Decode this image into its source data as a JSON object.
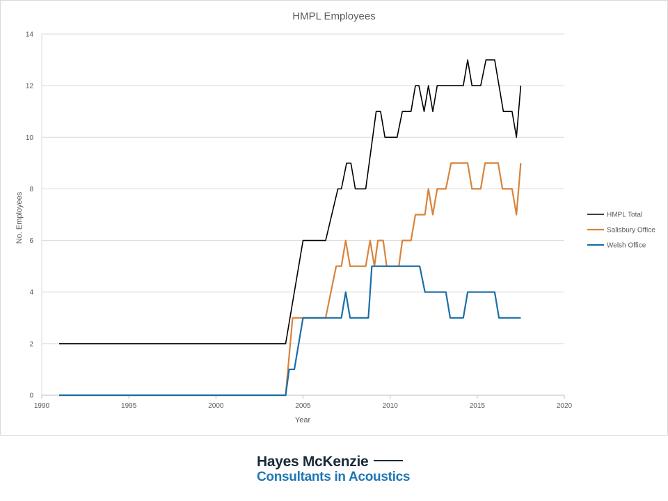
{
  "chart_data": {
    "type": "line",
    "title": "HMPL Employees",
    "xlabel": "Year",
    "ylabel": "No. Employees",
    "xlim": [
      1990,
      2020
    ],
    "ylim": [
      0,
      14
    ],
    "xticks": [
      1990,
      1995,
      2000,
      2005,
      2010,
      2015,
      2020
    ],
    "yticks": [
      0,
      2,
      4,
      6,
      8,
      10,
      12,
      14
    ],
    "grid": "horizontal",
    "legend": "right",
    "series": [
      {
        "name": "HMPL Total",
        "color": "#000000",
        "points": [
          [
            1991,
            2
          ],
          [
            2004,
            2
          ],
          [
            2005,
            6
          ],
          [
            2006.3,
            6
          ],
          [
            2007,
            8
          ],
          [
            2007.2,
            8
          ],
          [
            2007.5,
            9
          ],
          [
            2007.75,
            9
          ],
          [
            2008,
            8
          ],
          [
            2008.6,
            8
          ],
          [
            2009.2,
            11
          ],
          [
            2009.45,
            11
          ],
          [
            2009.7,
            10
          ],
          [
            2010.4,
            10
          ],
          [
            2010.7,
            11
          ],
          [
            2011.2,
            11
          ],
          [
            2011.45,
            12
          ],
          [
            2011.65,
            12
          ],
          [
            2011.95,
            11
          ],
          [
            2012.2,
            12
          ],
          [
            2012.45,
            11
          ],
          [
            2012.7,
            12
          ],
          [
            2014.2,
            12
          ],
          [
            2014.45,
            13
          ],
          [
            2014.7,
            12
          ],
          [
            2015.2,
            12
          ],
          [
            2015.5,
            13
          ],
          [
            2016,
            13
          ],
          [
            2016.5,
            11
          ],
          [
            2017,
            11
          ],
          [
            2017.25,
            10
          ],
          [
            2017.5,
            12
          ]
        ]
      },
      {
        "name": "Salisbury Office",
        "color": "#d9833b",
        "points": [
          [
            1991,
            0
          ],
          [
            2004,
            0
          ],
          [
            2004.4,
            3
          ],
          [
            2006.3,
            3
          ],
          [
            2006.9,
            5
          ],
          [
            2007.2,
            5
          ],
          [
            2007.45,
            6
          ],
          [
            2007.7,
            5
          ],
          [
            2008.6,
            5
          ],
          [
            2008.85,
            6
          ],
          [
            2009.1,
            5
          ],
          [
            2009.3,
            6
          ],
          [
            2009.6,
            6
          ],
          [
            2009.8,
            5
          ],
          [
            2010.5,
            5
          ],
          [
            2010.7,
            6
          ],
          [
            2011.2,
            6
          ],
          [
            2011.45,
            7
          ],
          [
            2012,
            7
          ],
          [
            2012.2,
            8
          ],
          [
            2012.45,
            7
          ],
          [
            2012.7,
            8
          ],
          [
            2013.2,
            8
          ],
          [
            2013.5,
            9
          ],
          [
            2014.45,
            9
          ],
          [
            2014.7,
            8
          ],
          [
            2015.2,
            8
          ],
          [
            2015.45,
            9
          ],
          [
            2016.2,
            9
          ],
          [
            2016.45,
            8
          ],
          [
            2017,
            8
          ],
          [
            2017.25,
            7
          ],
          [
            2017.5,
            9
          ]
        ]
      },
      {
        "name": "Welsh Office",
        "color": "#1a6ea8",
        "points": [
          [
            1991,
            0
          ],
          [
            2004,
            0
          ],
          [
            2004.2,
            1
          ],
          [
            2004.5,
            1
          ],
          [
            2005,
            3
          ],
          [
            2007.2,
            3
          ],
          [
            2007.45,
            4
          ],
          [
            2007.7,
            3
          ],
          [
            2008.75,
            3
          ],
          [
            2008.95,
            5
          ],
          [
            2011.7,
            5
          ],
          [
            2012,
            4
          ],
          [
            2013.2,
            4
          ],
          [
            2013.45,
            3
          ],
          [
            2014.2,
            3
          ],
          [
            2014.45,
            4
          ],
          [
            2016,
            4
          ],
          [
            2016.25,
            3
          ],
          [
            2017.5,
            3
          ]
        ]
      }
    ]
  },
  "logo": {
    "line1": "Hayes McKenzie",
    "line2": "Consultants in Acoustics"
  }
}
